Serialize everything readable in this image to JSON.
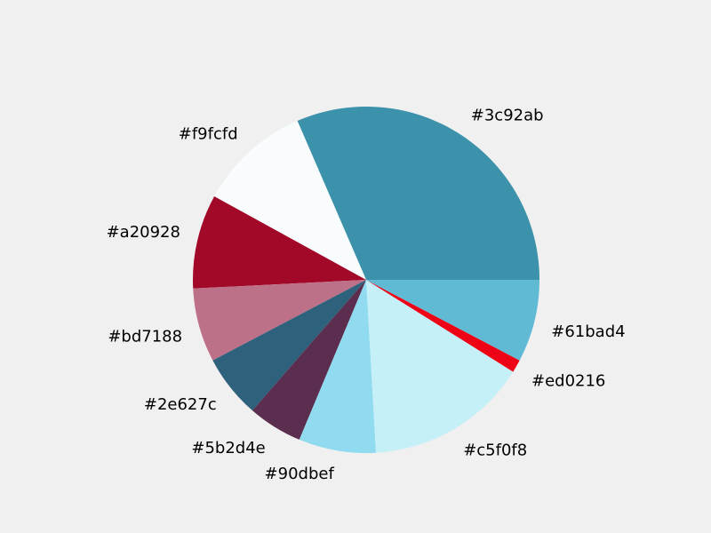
{
  "chart_data": {
    "type": "pie",
    "title": "",
    "start_angle": 0,
    "direction": "counterclockwise",
    "slices": [
      {
        "label": "#3c92ab",
        "value": 31.5,
        "color": "#3c92ab"
      },
      {
        "label": "#f9fcfd",
        "value": 10.5,
        "color": "#f9fcfd"
      },
      {
        "label": "#a20928",
        "value": 8.8,
        "color": "#a20928"
      },
      {
        "label": "#bd7188",
        "value": 6.9,
        "color": "#bd7188"
      },
      {
        "label": "#2e627c",
        "value": 5.9,
        "color": "#2e627c"
      },
      {
        "label": "#5b2d4e",
        "value": 5.1,
        "color": "#5b2d4e"
      },
      {
        "label": "#90dbef",
        "value": 7.2,
        "color": "#90dbef"
      },
      {
        "label": "#c5f0f8",
        "value": 15.2,
        "color": "#c5f0f8"
      },
      {
        "label": "#ed0216",
        "value": 1.2,
        "color": "#ed0216"
      },
      {
        "label": "#61bad4",
        "value": 7.7,
        "color": "#61bad4"
      }
    ]
  }
}
